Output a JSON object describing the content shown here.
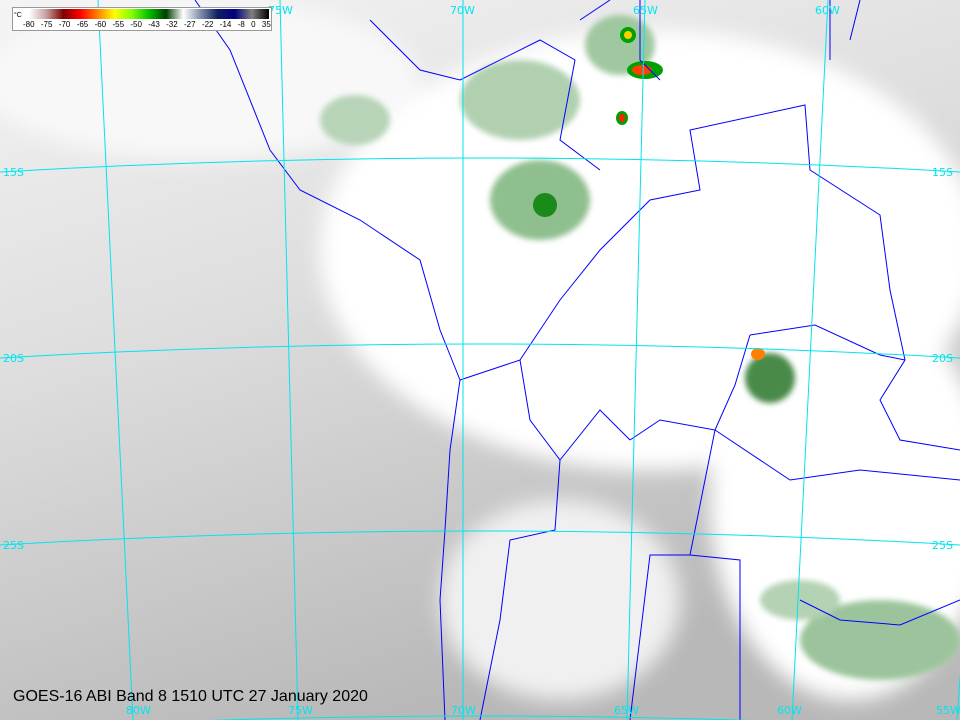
{
  "caption": "GOES-16 ABI Band 8 1510 UTC 27 January 2020",
  "colorbar": {
    "unit": "°C",
    "ticks": [
      "-80",
      "-75",
      "-70",
      "-65",
      "-60",
      "-55",
      "-50",
      "-43",
      "-32",
      "-27",
      "-22",
      "-14",
      "-8",
      "0",
      "35"
    ],
    "colors": [
      "#ffffff",
      "#c8a0a0",
      "#800000",
      "#ff0000",
      "#ff8000",
      "#ffff00",
      "#80ff00",
      "#00c000",
      "#004000",
      "#ffffff",
      "#8090a8",
      "#102060",
      "#000080",
      "#808080",
      "#000000"
    ]
  },
  "grid": {
    "latitudes": [
      "15S",
      "20S",
      "25S"
    ],
    "longitudes_top": [
      "75W",
      "70W",
      "65W",
      "60W"
    ],
    "longitudes_bottom": [
      "80W",
      "75W",
      "70W",
      "65W",
      "60W",
      "55W"
    ],
    "line_color": "#00e5ee",
    "border_color": "#0000ff"
  }
}
